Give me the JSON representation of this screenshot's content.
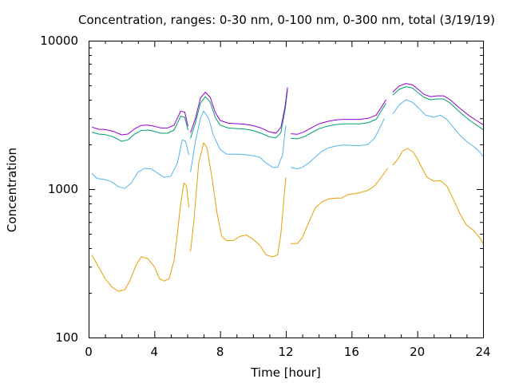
{
  "chart_data": {
    "type": "line",
    "title": "Concentration, ranges: 0-30 nm, 0-100 nm, 0-300 nm, total (3/19/19)",
    "xlabel": "Time [hour]",
    "ylabel": "Concentration",
    "xlim": [
      0,
      24
    ],
    "ylim": [
      100,
      10000
    ],
    "yscale": "log",
    "grid": false,
    "legend": "none",
    "xticks": [
      0,
      4,
      8,
      12,
      16,
      20,
      24
    ],
    "xtick_labels": [
      "0",
      "4",
      "8",
      "12",
      "16",
      "20",
      "24"
    ],
    "yticks": [
      100,
      1000,
      10000
    ],
    "ytick_labels": [
      "100",
      "1000",
      "10000"
    ],
    "series": [
      {
        "color": "#e69f00",
        "segments": [
          [
            [
              0.2,
              360
            ],
            [
              0.6,
              300
            ],
            [
              1.0,
              250
            ],
            [
              1.4,
              220
            ],
            [
              1.8,
              205
            ],
            [
              2.2,
              210
            ],
            [
              2.5,
              240
            ],
            [
              2.9,
              310
            ],
            [
              3.2,
              350
            ],
            [
              3.6,
              340
            ],
            [
              4.0,
              300
            ],
            [
              4.3,
              250
            ],
            [
              4.6,
              240
            ],
            [
              4.9,
              250
            ],
            [
              5.2,
              330
            ],
            [
              5.4,
              500
            ],
            [
              5.6,
              800
            ],
            [
              5.8,
              1100
            ],
            [
              5.95,
              1050
            ],
            [
              6.1,
              750
            ]
          ],
          [
            [
              6.2,
              380
            ],
            [
              6.4,
              600
            ],
            [
              6.7,
              1500
            ],
            [
              7.0,
              2050
            ],
            [
              7.2,
              1900
            ],
            [
              7.5,
              1200
            ],
            [
              7.8,
              700
            ],
            [
              8.1,
              480
            ],
            [
              8.4,
              450
            ],
            [
              8.8,
              450
            ],
            [
              9.2,
              480
            ],
            [
              9.6,
              490
            ],
            [
              10.0,
              460
            ],
            [
              10.4,
              420
            ],
            [
              10.8,
              360
            ],
            [
              11.2,
              350
            ],
            [
              11.5,
              360
            ],
            [
              11.7,
              500
            ],
            [
              11.9,
              900
            ],
            [
              12.0,
              1200
            ]
          ],
          [
            [
              12.3,
              430
            ],
            [
              12.7,
              430
            ],
            [
              13.0,
              470
            ],
            [
              13.4,
              600
            ],
            [
              13.8,
              750
            ],
            [
              14.2,
              820
            ],
            [
              14.6,
              860
            ],
            [
              15.0,
              870
            ],
            [
              15.4,
              870
            ],
            [
              15.8,
              920
            ],
            [
              16.4,
              940
            ],
            [
              17.0,
              980
            ],
            [
              17.4,
              1050
            ],
            [
              17.8,
              1200
            ],
            [
              18.2,
              1380
            ]
          ],
          [
            [
              18.5,
              1450
            ],
            [
              18.8,
              1580
            ],
            [
              19.1,
              1800
            ],
            [
              19.4,
              1880
            ],
            [
              19.7,
              1800
            ],
            [
              20.0,
              1600
            ],
            [
              20.3,
              1380
            ],
            [
              20.6,
              1200
            ],
            [
              21.0,
              1130
            ],
            [
              21.4,
              1140
            ],
            [
              21.8,
              1050
            ],
            [
              22.2,
              850
            ],
            [
              22.6,
              680
            ],
            [
              23.0,
              570
            ],
            [
              23.4,
              530
            ],
            [
              23.8,
              470
            ],
            [
              24.0,
              430
            ]
          ]
        ]
      },
      {
        "color": "#56b4e9",
        "segments": [
          [
            [
              0.2,
              1280
            ],
            [
              0.5,
              1180
            ],
            [
              1.0,
              1160
            ],
            [
              1.4,
              1120
            ],
            [
              1.8,
              1040
            ],
            [
              2.2,
              1010
            ],
            [
              2.6,
              1100
            ],
            [
              3.0,
              1300
            ],
            [
              3.4,
              1380
            ],
            [
              3.8,
              1370
            ],
            [
              4.2,
              1280
            ],
            [
              4.6,
              1200
            ],
            [
              5.0,
              1220
            ],
            [
              5.4,
              1500
            ],
            [
              5.7,
              2150
            ],
            [
              5.9,
              2100
            ],
            [
              6.1,
              1700
            ]
          ],
          [
            [
              6.2,
              1300
            ],
            [
              6.5,
              2100
            ],
            [
              6.8,
              3000
            ],
            [
              7.0,
              3350
            ],
            [
              7.3,
              3000
            ],
            [
              7.6,
              2300
            ],
            [
              8.0,
              1850
            ],
            [
              8.4,
              1720
            ],
            [
              8.8,
              1720
            ],
            [
              9.2,
              1720
            ],
            [
              9.6,
              1700
            ],
            [
              10.0,
              1680
            ],
            [
              10.4,
              1640
            ],
            [
              10.8,
              1500
            ],
            [
              11.2,
              1400
            ],
            [
              11.5,
              1400
            ],
            [
              11.8,
              1700
            ],
            [
              12.0,
              2700
            ]
          ],
          [
            [
              12.3,
              1400
            ],
            [
              12.7,
              1370
            ],
            [
              13.0,
              1400
            ],
            [
              13.4,
              1500
            ],
            [
              13.8,
              1650
            ],
            [
              14.2,
              1800
            ],
            [
              14.6,
              1900
            ],
            [
              15.0,
              1950
            ],
            [
              15.5,
              1980
            ],
            [
              16.0,
              1970
            ],
            [
              16.5,
              1960
            ],
            [
              17.0,
              2000
            ],
            [
              17.4,
              2200
            ],
            [
              17.8,
              2700
            ],
            [
              18.0,
              3000
            ]
          ],
          [
            [
              18.5,
              3200
            ],
            [
              18.9,
              3700
            ],
            [
              19.3,
              4000
            ],
            [
              19.7,
              3850
            ],
            [
              20.1,
              3500
            ],
            [
              20.5,
              3150
            ],
            [
              21.0,
              3050
            ],
            [
              21.4,
              3150
            ],
            [
              21.8,
              2950
            ],
            [
              22.2,
              2600
            ],
            [
              22.6,
              2300
            ],
            [
              23.0,
              2100
            ],
            [
              23.4,
              1950
            ],
            [
              23.8,
              1780
            ],
            [
              24.0,
              1650
            ]
          ]
        ]
      },
      {
        "color": "#009e73",
        "segments": [
          [
            [
              0.2,
              2420
            ],
            [
              0.6,
              2350
            ],
            [
              1.0,
              2330
            ],
            [
              1.5,
              2250
            ],
            [
              2.0,
              2100
            ],
            [
              2.4,
              2150
            ],
            [
              2.8,
              2350
            ],
            [
              3.2,
              2480
            ],
            [
              3.6,
              2500
            ],
            [
              4.0,
              2450
            ],
            [
              4.4,
              2380
            ],
            [
              4.8,
              2380
            ],
            [
              5.2,
              2500
            ],
            [
              5.6,
              3100
            ],
            [
              5.85,
              3050
            ],
            [
              6.05,
              2500
            ]
          ],
          [
            [
              6.2,
              2200
            ],
            [
              6.5,
              2800
            ],
            [
              6.8,
              3800
            ],
            [
              7.1,
              4200
            ],
            [
              7.4,
              3850
            ],
            [
              7.7,
              3050
            ],
            [
              8.0,
              2700
            ],
            [
              8.5,
              2580
            ],
            [
              9.0,
              2560
            ],
            [
              9.5,
              2540
            ],
            [
              10.0,
              2480
            ],
            [
              10.5,
              2380
            ],
            [
              11.0,
              2250
            ],
            [
              11.4,
              2220
            ],
            [
              11.7,
              2400
            ],
            [
              11.95,
              3400
            ],
            [
              12.1,
              4650
            ]
          ],
          [
            [
              12.3,
              2200
            ],
            [
              12.7,
              2180
            ],
            [
              13.1,
              2250
            ],
            [
              13.5,
              2380
            ],
            [
              14.0,
              2550
            ],
            [
              14.5,
              2650
            ],
            [
              15.0,
              2720
            ],
            [
              15.5,
              2750
            ],
            [
              16.0,
              2750
            ],
            [
              16.5,
              2750
            ],
            [
              17.0,
              2800
            ],
            [
              17.5,
              2950
            ],
            [
              17.8,
              3350
            ],
            [
              18.1,
              3800
            ]
          ],
          [
            [
              18.5,
              4300
            ],
            [
              18.9,
              4700
            ],
            [
              19.3,
              4900
            ],
            [
              19.7,
              4800
            ],
            [
              20.0,
              4500
            ],
            [
              20.4,
              4150
            ],
            [
              20.8,
              4000
            ],
            [
              21.2,
              4050
            ],
            [
              21.6,
              4050
            ],
            [
              22.0,
              3800
            ],
            [
              22.4,
              3450
            ],
            [
              22.8,
              3150
            ],
            [
              23.2,
              2900
            ],
            [
              23.6,
              2700
            ],
            [
              24.0,
              2520
            ]
          ]
        ]
      },
      {
        "color": "#9400d3",
        "segments": [
          [
            [
              0.2,
              2620
            ],
            [
              0.6,
              2530
            ],
            [
              1.0,
              2520
            ],
            [
              1.5,
              2450
            ],
            [
              2.0,
              2320
            ],
            [
              2.4,
              2350
            ],
            [
              2.8,
              2550
            ],
            [
              3.2,
              2690
            ],
            [
              3.6,
              2700
            ],
            [
              4.0,
              2650
            ],
            [
              4.4,
              2580
            ],
            [
              4.8,
              2580
            ],
            [
              5.2,
              2700
            ],
            [
              5.6,
              3350
            ],
            [
              5.85,
              3300
            ],
            [
              6.05,
              2650
            ]
          ],
          [
            [
              6.2,
              2400
            ],
            [
              6.5,
              3000
            ],
            [
              6.8,
              4100
            ],
            [
              7.1,
              4500
            ],
            [
              7.4,
              4150
            ],
            [
              7.7,
              3300
            ],
            [
              8.0,
              2900
            ],
            [
              8.5,
              2780
            ],
            [
              9.0,
              2760
            ],
            [
              9.5,
              2740
            ],
            [
              10.0,
              2680
            ],
            [
              10.5,
              2580
            ],
            [
              11.0,
              2430
            ],
            [
              11.4,
              2380
            ],
            [
              11.7,
              2600
            ],
            [
              11.95,
              3600
            ],
            [
              12.1,
              4850
            ]
          ],
          [
            [
              12.3,
              2360
            ],
            [
              12.7,
              2340
            ],
            [
              13.1,
              2430
            ],
            [
              13.5,
              2570
            ],
            [
              14.0,
              2750
            ],
            [
              14.5,
              2850
            ],
            [
              15.0,
              2920
            ],
            [
              15.5,
              2950
            ],
            [
              16.0,
              2950
            ],
            [
              16.5,
              2950
            ],
            [
              17.0,
              3000
            ],
            [
              17.5,
              3150
            ],
            [
              17.8,
              3550
            ],
            [
              18.1,
              4000
            ]
          ],
          [
            [
              18.5,
              4500
            ],
            [
              18.9,
              4950
            ],
            [
              19.3,
              5150
            ],
            [
              19.7,
              5050
            ],
            [
              20.0,
              4750
            ],
            [
              20.4,
              4350
            ],
            [
              20.8,
              4200
            ],
            [
              21.2,
              4250
            ],
            [
              21.6,
              4250
            ],
            [
              22.0,
              4000
            ],
            [
              22.4,
              3650
            ],
            [
              22.8,
              3350
            ],
            [
              23.2,
              3100
            ],
            [
              23.6,
              2900
            ],
            [
              24.0,
              2720
            ]
          ]
        ]
      }
    ]
  }
}
